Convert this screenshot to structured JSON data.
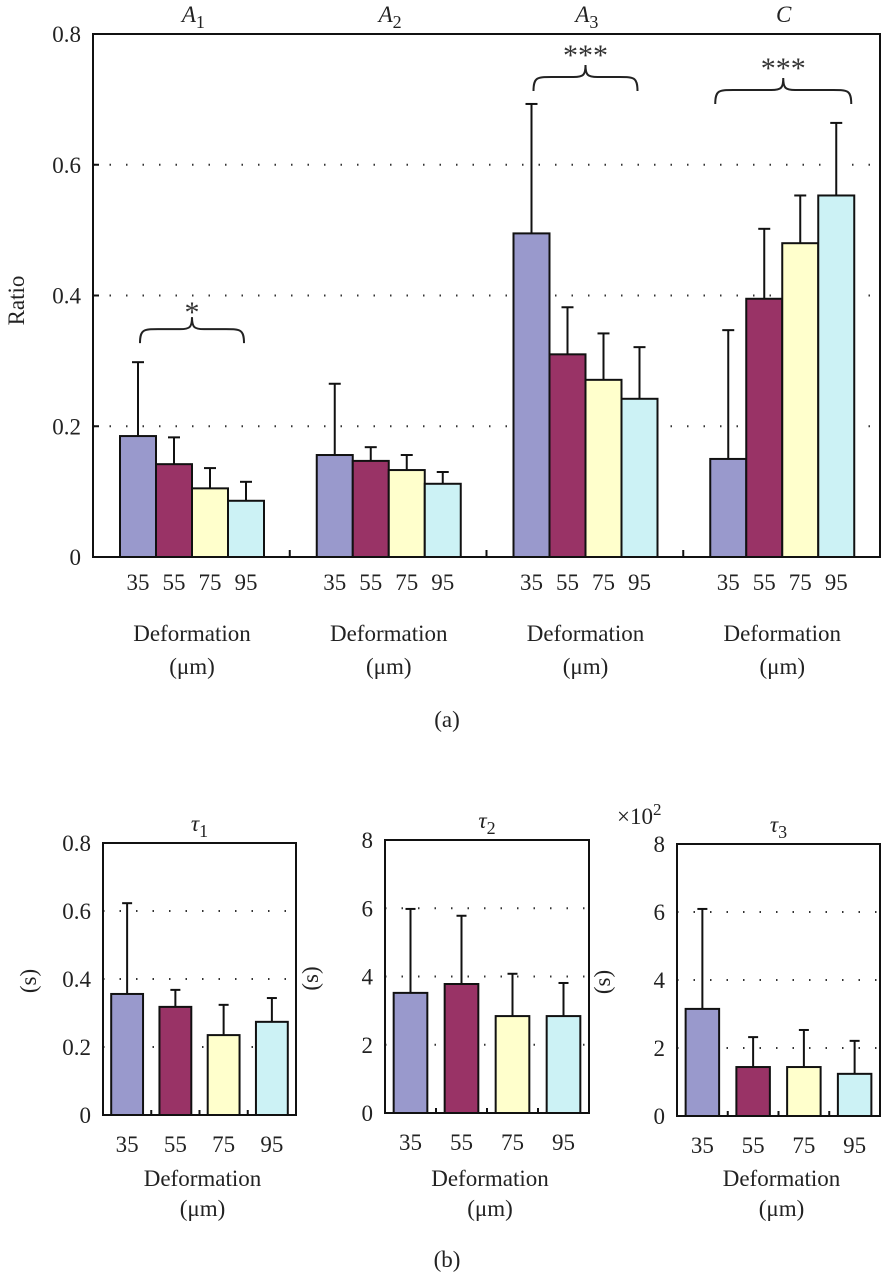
{
  "colors": [
    "#9999cc",
    "#993366",
    "#ffffcc",
    "#ccf2f5"
  ],
  "chart_data": [
    {
      "id": "a",
      "type": "bar",
      "caption": "(a)",
      "ylabel": "Ratio",
      "ylim": [
        0,
        0.8
      ],
      "yticks": [
        "0",
        "0.2",
        "0.4",
        "0.6",
        "0.8"
      ],
      "ytick_values": [
        0,
        0.2,
        0.4,
        0.6,
        0.8
      ],
      "grid": "dotted horizontal",
      "categories": [
        "35",
        "55",
        "75",
        "95"
      ],
      "xlabel_line1": "Deformation",
      "xlabel_line2": "(μm)",
      "groups": [
        {
          "title": "A",
          "sub": "1",
          "values": [
            0.185,
            0.142,
            0.105,
            0.086
          ],
          "errors_upper": [
            0.298,
            0.183,
            0.136,
            0.115
          ],
          "annotation": "*"
        },
        {
          "title": "A",
          "sub": "2",
          "values": [
            0.156,
            0.147,
            0.133,
            0.112
          ],
          "errors_upper": [
            0.265,
            0.168,
            0.156,
            0.13
          ],
          "annotation": ""
        },
        {
          "title": "A",
          "sub": "3",
          "values": [
            0.495,
            0.31,
            0.271,
            0.242
          ],
          "errors_upper": [
            0.693,
            0.382,
            0.342,
            0.321
          ],
          "annotation": "***"
        },
        {
          "title": "C",
          "sub": "",
          "values": [
            0.15,
            0.395,
            0.48,
            0.553
          ],
          "errors_upper": [
            0.347,
            0.502,
            0.553,
            0.664
          ],
          "annotation": "***"
        }
      ]
    },
    {
      "id": "b",
      "type": "bar",
      "caption": "(b)",
      "panels": [
        {
          "title": "τ",
          "sub": "1",
          "ylabel": "(s)",
          "multiplier": "",
          "ylim": [
            0,
            0.8
          ],
          "yticks": [
            "0",
            "0.2",
            "0.4",
            "0.6",
            "0.8"
          ],
          "ytick_values": [
            0,
            0.2,
            0.4,
            0.6,
            0.8
          ],
          "categories": [
            "35",
            "55",
            "75",
            "95"
          ],
          "values": [
            0.356,
            0.318,
            0.235,
            0.274
          ],
          "errors_upper": [
            0.623,
            0.368,
            0.324,
            0.344
          ]
        },
        {
          "title": "τ",
          "sub": "2",
          "ylabel": "(s)",
          "multiplier": "",
          "ylim": [
            0,
            8
          ],
          "yticks": [
            "0",
            "2",
            "4",
            "6",
            "8"
          ],
          "ytick_values": [
            0,
            2,
            4,
            6,
            8
          ],
          "categories": [
            "35",
            "55",
            "75",
            "95"
          ],
          "values": [
            3.52,
            3.78,
            2.84,
            2.84
          ],
          "errors_upper": [
            5.98,
            5.78,
            4.08,
            3.81
          ]
        },
        {
          "title": "τ",
          "sub": "3",
          "ylabel": "(s)",
          "multiplier": "×10",
          "multiplier_exp": "2",
          "ylim": [
            0,
            8
          ],
          "yticks": [
            "0",
            "2",
            "4",
            "6",
            "8"
          ],
          "ytick_values": [
            0,
            2,
            4,
            6,
            8
          ],
          "categories": [
            "35",
            "55",
            "75",
            "95"
          ],
          "values": [
            3.15,
            1.44,
            1.44,
            1.24
          ],
          "errors_upper": [
            6.09,
            2.32,
            2.53,
            2.21
          ]
        }
      ],
      "xlabel_line1": "Deformation",
      "xlabel_line2": "(μm)"
    }
  ]
}
